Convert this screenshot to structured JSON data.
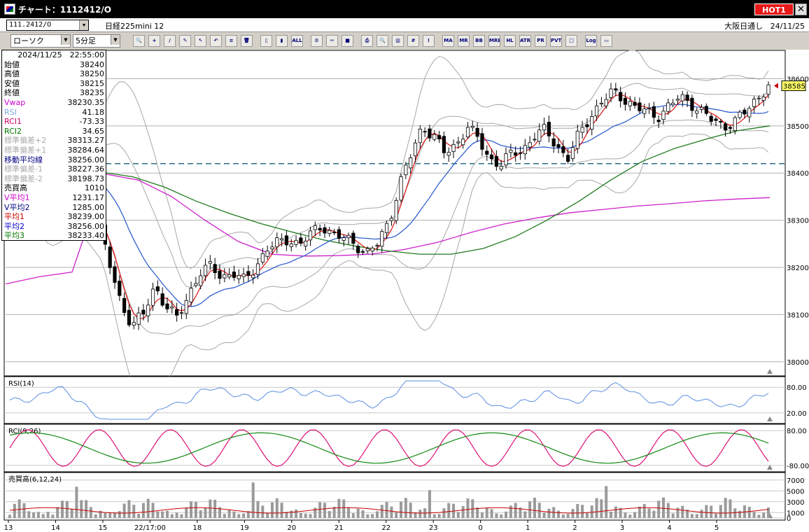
{
  "window": {
    "title": "チャート：1112412/O",
    "hot_label": "HOT1",
    "close_label": "✕"
  },
  "header": {
    "code": "111.2412/O",
    "contract": "日経225mini 12",
    "session": "大阪日通し",
    "date": "24/11/25"
  },
  "toolbar": {
    "chart_type": "ローソク",
    "interval": "5分足",
    "buttons": [
      {
        "name": "zoom-icon",
        "t": "🔍"
      },
      {
        "name": "crosshair-icon",
        "t": "+"
      },
      {
        "name": "trendline-icon",
        "t": "/"
      },
      {
        "name": "pen-icon",
        "t": "✎"
      },
      {
        "name": "cursor-icon",
        "t": "↖"
      },
      {
        "name": "undo-icon",
        "t": "↶"
      },
      {
        "name": "list-icon",
        "t": "≡"
      },
      {
        "name": "trash-icon",
        "t": "🗑"
      },
      {
        "name": "candle-icon",
        "t": "▯"
      },
      {
        "name": "candle2-icon",
        "t": "▮"
      },
      {
        "name": "all-icon",
        "t": "ALL"
      },
      {
        "name": "settings-icon",
        "t": "⚙"
      },
      {
        "name": "brush-icon",
        "t": "✏"
      },
      {
        "name": "color-icon",
        "t": "■"
      },
      {
        "name": "print-icon",
        "t": "⎙"
      },
      {
        "name": "search2-icon",
        "t": "🔍"
      },
      {
        "name": "bars-icon",
        "t": "▥"
      },
      {
        "name": "grid-icon",
        "t": "#"
      },
      {
        "name": "lock-icon",
        "t": "!"
      },
      {
        "name": "ma-icon",
        "t": "MA"
      },
      {
        "name": "mr-icon",
        "t": "MR"
      },
      {
        "name": "bb-icon",
        "t": "BB"
      },
      {
        "name": "mre-icon",
        "t": "MRE"
      },
      {
        "name": "hl-icon",
        "t": "HL"
      },
      {
        "name": "atr-icon",
        "t": "ATR"
      },
      {
        "name": "pr-icon",
        "t": "PR"
      },
      {
        "name": "pvt-icon",
        "t": "PVT"
      },
      {
        "name": "box-icon",
        "t": "□"
      },
      {
        "name": "log-icon",
        "t": "Log"
      },
      {
        "name": "window-icon",
        "t": "▭"
      }
    ]
  },
  "info_panel": {
    "timestamp": "2024/11/25　22:55:00",
    "rows": [
      {
        "label": "始値",
        "value": "38240",
        "color": "#000000"
      },
      {
        "label": "高値",
        "value": "38250",
        "color": "#000000"
      },
      {
        "label": "安値",
        "value": "38215",
        "color": "#000000"
      },
      {
        "label": "終値",
        "value": "38235",
        "color": "#000000"
      },
      {
        "label": "Vwap",
        "value": "38230.35",
        "color": "#cc00cc"
      },
      {
        "label": "RSI",
        "value": "41.18",
        "color": "#7f9fdf"
      },
      {
        "label": "RCI1",
        "value": "-73.33",
        "color": "#cc0066"
      },
      {
        "label": "RCI2",
        "value": "34.65",
        "color": "#007700"
      },
      {
        "label": "標準偏差+2",
        "value": "38313.27",
        "color": "#aaaaaa"
      },
      {
        "label": "標準偏差+1",
        "value": "38284.64",
        "color": "#aaaaaa"
      },
      {
        "label": "移動平均線",
        "value": "38256.00",
        "color": "#000080"
      },
      {
        "label": "標準偏差-1",
        "value": "38227.36",
        "color": "#aaaaaa"
      },
      {
        "label": "標準偏差-2",
        "value": "38198.73",
        "color": "#aaaaaa"
      },
      {
        "label": "売買高",
        "value": "1010",
        "color": "#000000"
      },
      {
        "label": "V平均1",
        "value": "1231.17",
        "color": "#cc00cc"
      },
      {
        "label": "V平均2",
        "value": "1285.00",
        "color": "#000080"
      },
      {
        "label": "平均1",
        "value": "38239.00",
        "color": "#cc0000"
      },
      {
        "label": "平均2",
        "value": "38256.00",
        "color": "#0000cc"
      },
      {
        "label": "平均3",
        "value": "38233.40",
        "color": "#007700"
      }
    ]
  },
  "chart_data": {
    "type": "candlestick",
    "price_axis": {
      "ylim": [
        37970,
        38660
      ],
      "ticks": [
        38000,
        38100,
        38200,
        38300,
        38400,
        38500,
        38600
      ]
    },
    "last_price": 38585,
    "reference_line": 38420,
    "x_labels": [
      "13",
      "14",
      "15",
      "22/17:00",
      "18",
      "19",
      "20",
      "21",
      "22",
      "23",
      "0",
      "1",
      "2",
      "3",
      "4",
      "5"
    ],
    "close_path": [
      38340,
      38330,
      38380,
      38420,
      38460,
      38400,
      38360,
      38320,
      38290,
      38200,
      38120,
      38080,
      38100,
      38160,
      38120,
      38090,
      38140,
      38190,
      38200,
      38180,
      38190,
      38170,
      38200,
      38240,
      38250,
      38260,
      38250,
      38270,
      38290,
      38270,
      38260,
      38250,
      38230,
      38250,
      38300,
      38380,
      38440,
      38500,
      38480,
      38440,
      38460,
      38500,
      38470,
      38430,
      38420,
      38440,
      38450,
      38480,
      38490,
      38460,
      38430,
      38480,
      38520,
      38550,
      38570,
      38560,
      38540,
      38530,
      38520,
      38540,
      38560,
      38550,
      38530,
      38510,
      38500,
      38510,
      38530,
      38560,
      38585
    ],
    "vwap": [
      38165,
      38180,
      38190,
      38398,
      38385,
      38350,
      38300,
      38255,
      38228,
      38224,
      38225,
      38228,
      38238,
      38253,
      38274,
      38292,
      38305,
      38316,
      38323,
      38330,
      38335,
      38341,
      38345,
      38348
    ],
    "ma_long": [
      38390,
      38395,
      38400,
      38402,
      38392,
      38370,
      38340,
      38315,
      38293,
      38275,
      38258,
      38245,
      38235,
      38228,
      38228,
      38240,
      38265,
      38300,
      38340,
      38385,
      38425,
      38452,
      38472,
      38490,
      38500
    ],
    "rsi": {
      "label": "RSI(14)",
      "ticks": [
        80,
        20
      ],
      "ylim": [
        0,
        100
      ]
    },
    "rci": {
      "label": "RCI(9,26)",
      "ticks": [
        80,
        -80
      ],
      "ylim": [
        -100,
        100
      ]
    },
    "volume": {
      "label": "売買高(6,12,24)",
      "ticks": [
        7000,
        5000,
        3000,
        1000,
        0
      ],
      "ylim": [
        0,
        8000
      ]
    }
  }
}
